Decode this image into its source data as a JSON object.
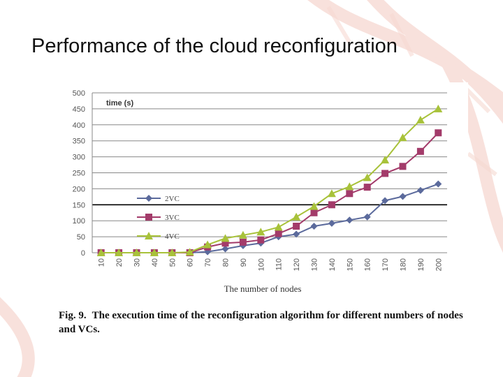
{
  "slide": {
    "title": "Performance of the cloud reconfiguration"
  },
  "caption": {
    "label": "Fig. 9.",
    "text": "The execution time of the reconfiguration algorithm for different numbers of nodes and VCs."
  },
  "colors": {
    "background_decoration": "#f3c9c0",
    "grid": "#888888",
    "emphasis_grid": "#000000",
    "axis_text": "#555555"
  },
  "chart_data": {
    "type": "line",
    "ylabel": "time (s)",
    "xlabel": "The number of nodes",
    "categories": [
      "10",
      "20",
      "30",
      "40",
      "50",
      "60",
      "70",
      "80",
      "90",
      "100",
      "110",
      "120",
      "130",
      "140",
      "150",
      "160",
      "170",
      "180",
      "190",
      "200"
    ],
    "ylim": [
      0,
      500
    ],
    "yticks": [
      "0",
      "50",
      "100",
      "150",
      "200",
      "250",
      "300",
      "350",
      "400",
      "450",
      "500"
    ],
    "grid": true,
    "legend_position": "left-middle",
    "series": [
      {
        "name": "2VC",
        "color": "#5b6a9c",
        "marker": "diamond",
        "values": [
          0,
          0,
          0,
          0,
          0,
          0,
          3,
          12,
          22,
          30,
          50,
          58,
          83,
          92,
          102,
          112,
          163,
          176,
          195,
          215
        ]
      },
      {
        "name": "3VC",
        "color": "#a33b6a",
        "marker": "square",
        "values": [
          0,
          0,
          0,
          0,
          0,
          0,
          18,
          30,
          33,
          40,
          60,
          83,
          125,
          150,
          185,
          205,
          248,
          270,
          317,
          375
        ]
      },
      {
        "name": "4VC",
        "color": "#a8c23a",
        "marker": "triangle",
        "values": [
          0,
          0,
          0,
          0,
          0,
          2,
          25,
          45,
          55,
          65,
          80,
          112,
          145,
          185,
          207,
          235,
          290,
          360,
          415,
          450
        ]
      }
    ]
  }
}
